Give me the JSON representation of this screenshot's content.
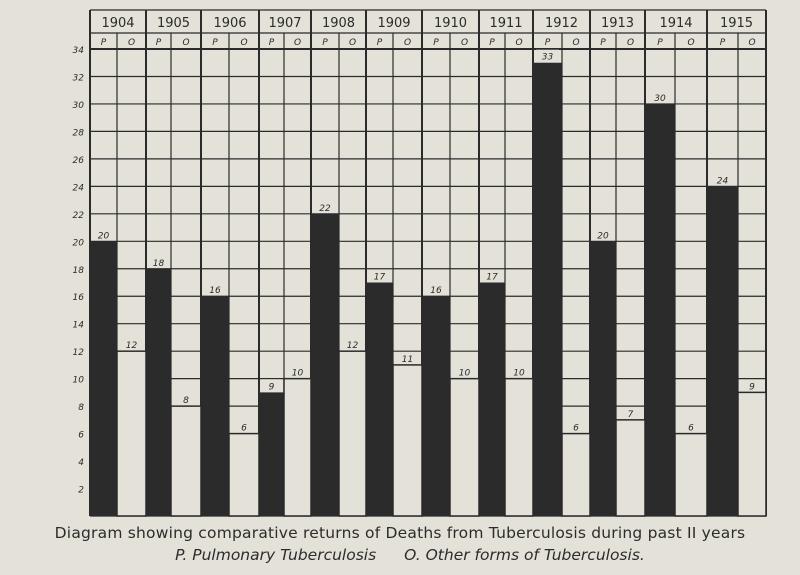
{
  "chart_data": {
    "type": "bar",
    "title": "Diagram showing comparative returns of Deaths from Tuberculosis during past II years",
    "legend": [
      "P. Pulmonary Tuberculosis",
      "O. Other forms of Tuberculosis."
    ],
    "categories": [
      "1904",
      "1905",
      "1906",
      "1907",
      "1908",
      "1909",
      "1910",
      "1911",
      "1912",
      "1913",
      "1914",
      "1915"
    ],
    "sub_labels": [
      "P",
      "O"
    ],
    "series": [
      {
        "name": "P",
        "values": [
          20,
          18,
          16,
          9,
          22,
          17,
          16,
          17,
          33,
          20,
          30,
          24
        ],
        "color": "#2b2b2b"
      },
      {
        "name": "O",
        "values": [
          12,
          8,
          6,
          10,
          12,
          11,
          10,
          10,
          6,
          7,
          6,
          9
        ],
        "color": "#e4e1d8"
      }
    ],
    "yticks": [
      2,
      4,
      6,
      8,
      10,
      12,
      14,
      16,
      18,
      20,
      22,
      24,
      26,
      28,
      30,
      32,
      34
    ],
    "ylim": [
      0,
      34
    ],
    "grid": true,
    "legend_placement": "bottom"
  },
  "colors": {
    "paper": "#e4e1d8",
    "ink": "#2b2b2b"
  }
}
